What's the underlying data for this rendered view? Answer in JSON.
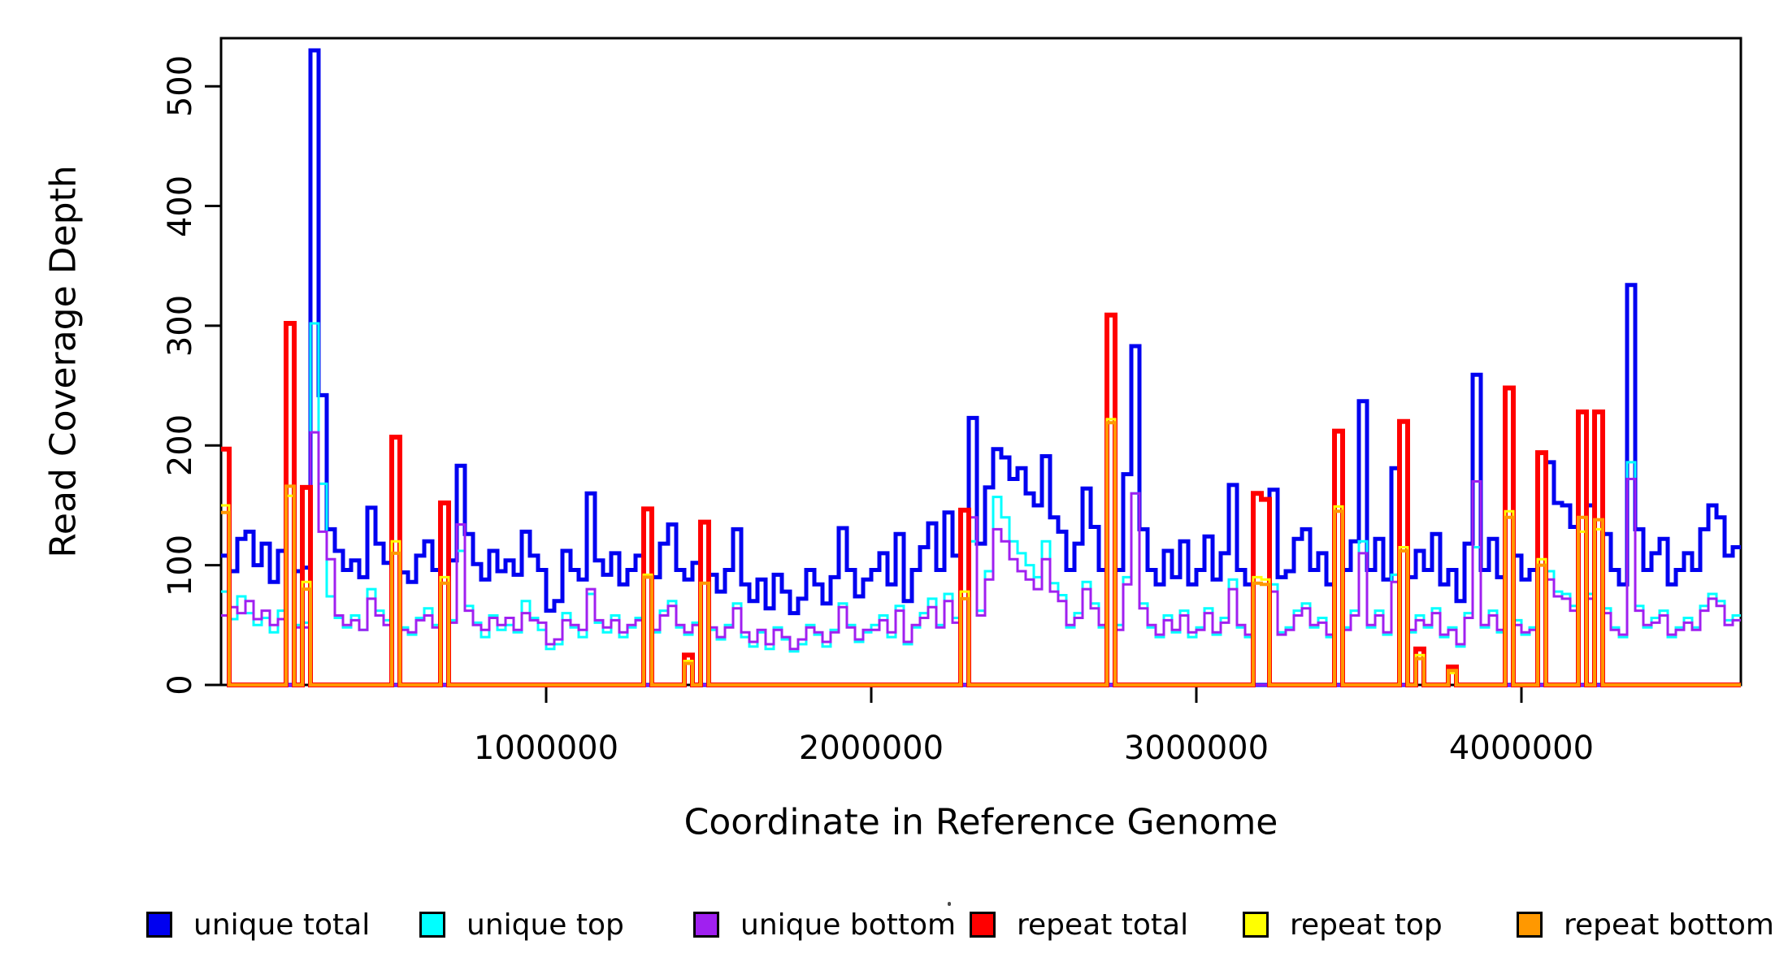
{
  "chart_data": {
    "type": "line",
    "subtype": "step-coverage-histogram-outline",
    "title": "",
    "xlabel": "Coordinate in Reference Genome",
    "ylabel": "Read Coverage Depth",
    "xlim": [
      0,
      4675000
    ],
    "ylim": [
      0,
      540
    ],
    "grid": false,
    "legend_position": "bottom",
    "x_bin_size": 25000,
    "x_start": 0,
    "x_tick_values": [
      1000000,
      2000000,
      3000000,
      4000000
    ],
    "x_tick_labels": [
      "1000000",
      "2000000",
      "3000000",
      "4000000"
    ],
    "y_tick_values": [
      0,
      100,
      200,
      300,
      400,
      500
    ],
    "y_tick_labels": [
      "0",
      "100",
      "200",
      "300",
      "400",
      "500"
    ],
    "series": [
      {
        "name": "unique total",
        "color": "#0000f0",
        "line_width": 5,
        "values": [
          108,
          95,
          122,
          128,
          100,
          118,
          86,
          112,
          0,
          95,
          98,
          530,
          242,
          130,
          112,
          96,
          104,
          90,
          148,
          118,
          102,
          0,
          94,
          86,
          108,
          120,
          96,
          0,
          104,
          183,
          126,
          101,
          88,
          112,
          95,
          104,
          92,
          128,
          108,
          96,
          62,
          70,
          112,
          96,
          88,
          160,
          104,
          92,
          110,
          84,
          96,
          108,
          0,
          90,
          118,
          134,
          96,
          88,
          102,
          0,
          92,
          78,
          96,
          130,
          84,
          70,
          88,
          64,
          92,
          78,
          60,
          72,
          96,
          84,
          68,
          90,
          131,
          96,
          74,
          88,
          96,
          110,
          84,
          126,
          70,
          96,
          115,
          135,
          96,
          144,
          108,
          0,
          223,
          118,
          165,
          197,
          190,
          172,
          181,
          160,
          150,
          191,
          140,
          128,
          96,
          118,
          164,
          132,
          96,
          0,
          96,
          176,
          283,
          130,
          96,
          84,
          112,
          90,
          120,
          84,
          96,
          124,
          88,
          110,
          167,
          96,
          84,
          0,
          0,
          163,
          90,
          95,
          122,
          130,
          96,
          110,
          84,
          0,
          96,
          120,
          237,
          96,
          122,
          88,
          181,
          0,
          90,
          112,
          96,
          126,
          84,
          96,
          70,
          118,
          259,
          96,
          122,
          90,
          0,
          108,
          88,
          96,
          0,
          186,
          152,
          150,
          132,
          0,
          150,
          0,
          126,
          96,
          84,
          334,
          130,
          96,
          110,
          122,
          84,
          96,
          110,
          96,
          130,
          150,
          140,
          108,
          115
        ]
      },
      {
        "name": "unique top",
        "color": "#00ffff",
        "line_width": 3,
        "values": [
          78,
          55,
          74,
          60,
          50,
          56,
          44,
          62,
          0,
          50,
          52,
          302,
          168,
          74,
          56,
          48,
          58,
          46,
          80,
          62,
          54,
          0,
          48,
          42,
          56,
          64,
          50,
          0,
          54,
          112,
          66,
          52,
          40,
          58,
          46,
          50,
          44,
          70,
          56,
          46,
          30,
          34,
          60,
          48,
          40,
          76,
          52,
          44,
          58,
          40,
          48,
          56,
          0,
          44,
          62,
          70,
          48,
          42,
          52,
          0,
          46,
          38,
          50,
          68,
          40,
          32,
          44,
          30,
          48,
          38,
          28,
          34,
          50,
          42,
          32,
          46,
          68,
          50,
          36,
          44,
          50,
          58,
          40,
          66,
          34,
          48,
          60,
          72,
          50,
          76,
          56,
          0,
          120,
          62,
          95,
          157,
          140,
          120,
          110,
          100,
          90,
          120,
          85,
          75,
          48,
          60,
          86,
          68,
          48,
          0,
          50,
          90,
          160,
          68,
          48,
          40,
          58,
          44,
          62,
          40,
          48,
          64,
          42,
          56,
          88,
          48,
          40,
          0,
          0,
          84,
          44,
          48,
          62,
          68,
          48,
          56,
          40,
          0,
          48,
          62,
          120,
          48,
          62,
          42,
          92,
          0,
          44,
          58,
          48,
          64,
          40,
          48,
          32,
          60,
          115,
          48,
          62,
          44,
          0,
          54,
          42,
          48,
          0,
          95,
          78,
          76,
          66,
          0,
          76,
          0,
          64,
          48,
          40,
          186,
          66,
          48,
          56,
          62,
          40,
          48,
          56,
          48,
          66,
          76,
          70,
          54,
          58
        ]
      },
      {
        "name": "unique bottom",
        "color": "#a020f0",
        "line_width": 3,
        "values": [
          58,
          65,
          60,
          70,
          55,
          62,
          50,
          55,
          0,
          48,
          48,
          211,
          128,
          105,
          58,
          50,
          54,
          46,
          72,
          58,
          50,
          0,
          46,
          44,
          54,
          58,
          48,
          0,
          52,
          134,
          62,
          50,
          46,
          56,
          50,
          56,
          46,
          60,
          54,
          52,
          34,
          38,
          54,
          50,
          46,
          80,
          54,
          48,
          54,
          44,
          50,
          54,
          0,
          46,
          58,
          66,
          50,
          44,
          50,
          0,
          48,
          40,
          48,
          64,
          44,
          36,
          46,
          34,
          46,
          40,
          30,
          38,
          48,
          44,
          36,
          44,
          65,
          48,
          38,
          46,
          46,
          54,
          44,
          62,
          36,
          50,
          56,
          65,
          48,
          70,
          52,
          0,
          140,
          58,
          88,
          130,
          120,
          105,
          95,
          88,
          80,
          105,
          78,
          70,
          50,
          56,
          80,
          64,
          50,
          0,
          46,
          84,
          160,
          64,
          50,
          42,
          54,
          46,
          58,
          44,
          46,
          60,
          44,
          52,
          80,
          50,
          42,
          0,
          0,
          78,
          42,
          46,
          58,
          64,
          50,
          52,
          42,
          0,
          46,
          58,
          110,
          50,
          58,
          44,
          86,
          0,
          46,
          54,
          50,
          60,
          42,
          46,
          34,
          56,
          170,
          50,
          58,
          46,
          0,
          50,
          44,
          46,
          0,
          88,
          74,
          72,
          62,
          0,
          72,
          0,
          60,
          46,
          42,
          172,
          62,
          50,
          52,
          58,
          42,
          46,
          52,
          46,
          62,
          72,
          66,
          50,
          54
        ]
      },
      {
        "name": "repeat total",
        "color": "#ff0000",
        "line_width": 6,
        "values": [
          197,
          0,
          0,
          0,
          0,
          0,
          0,
          0,
          302,
          0,
          165,
          0,
          0,
          0,
          0,
          0,
          0,
          0,
          0,
          0,
          0,
          207,
          0,
          0,
          0,
          0,
          0,
          152,
          0,
          0,
          0,
          0,
          0,
          0,
          0,
          0,
          0,
          0,
          0,
          0,
          0,
          0,
          0,
          0,
          0,
          0,
          0,
          0,
          0,
          0,
          0,
          0,
          147,
          0,
          0,
          0,
          0,
          25,
          0,
          136,
          0,
          0,
          0,
          0,
          0,
          0,
          0,
          0,
          0,
          0,
          0,
          0,
          0,
          0,
          0,
          0,
          0,
          0,
          0,
          0,
          0,
          0,
          0,
          0,
          0,
          0,
          0,
          0,
          0,
          0,
          0,
          146,
          0,
          0,
          0,
          0,
          0,
          0,
          0,
          0,
          0,
          0,
          0,
          0,
          0,
          0,
          0,
          0,
          0,
          309,
          0,
          0,
          0,
          0,
          0,
          0,
          0,
          0,
          0,
          0,
          0,
          0,
          0,
          0,
          0,
          0,
          0,
          160,
          155,
          0,
          0,
          0,
          0,
          0,
          0,
          0,
          0,
          212,
          0,
          0,
          0,
          0,
          0,
          0,
          0,
          220,
          0,
          30,
          0,
          0,
          0,
          15,
          0,
          0,
          0,
          0,
          0,
          0,
          248,
          0,
          0,
          0,
          194,
          0,
          0,
          0,
          0,
          228,
          0,
          228,
          0,
          0,
          0,
          0,
          0,
          0,
          0,
          0,
          0,
          0,
          0,
          0,
          0,
          0,
          0,
          0,
          0
        ]
      },
      {
        "name": "repeat top",
        "color": "#ffff00",
        "line_width": 3,
        "values": [
          150,
          0,
          0,
          0,
          0,
          0,
          0,
          0,
          158,
          0,
          86,
          0,
          0,
          0,
          0,
          0,
          0,
          0,
          0,
          0,
          0,
          120,
          0,
          0,
          0,
          0,
          0,
          90,
          0,
          0,
          0,
          0,
          0,
          0,
          0,
          0,
          0,
          0,
          0,
          0,
          0,
          0,
          0,
          0,
          0,
          0,
          0,
          0,
          0,
          0,
          0,
          0,
          92,
          0,
          0,
          0,
          0,
          20,
          0,
          85,
          0,
          0,
          0,
          0,
          0,
          0,
          0,
          0,
          0,
          0,
          0,
          0,
          0,
          0,
          0,
          0,
          0,
          0,
          0,
          0,
          0,
          0,
          0,
          0,
          0,
          0,
          0,
          0,
          0,
          0,
          0,
          78,
          0,
          0,
          0,
          0,
          0,
          0,
          0,
          0,
          0,
          0,
          0,
          0,
          0,
          0,
          0,
          0,
          0,
          222,
          0,
          0,
          0,
          0,
          0,
          0,
          0,
          0,
          0,
          0,
          0,
          0,
          0,
          0,
          0,
          0,
          0,
          90,
          88,
          0,
          0,
          0,
          0,
          0,
          0,
          0,
          0,
          149,
          0,
          0,
          0,
          0,
          0,
          0,
          0,
          115,
          0,
          25,
          0,
          0,
          0,
          10,
          0,
          0,
          0,
          0,
          0,
          0,
          145,
          0,
          0,
          0,
          105,
          0,
          0,
          0,
          0,
          128,
          0,
          130,
          0,
          0,
          0,
          0,
          0,
          0,
          0,
          0,
          0,
          0,
          0,
          0,
          0,
          0,
          0,
          0,
          0
        ]
      },
      {
        "name": "repeat bottom",
        "color": "#ff9800",
        "line_width": 4,
        "values": [
          144,
          0,
          0,
          0,
          0,
          0,
          0,
          0,
          166,
          0,
          80,
          0,
          0,
          0,
          0,
          0,
          0,
          0,
          0,
          0,
          0,
          110,
          0,
          0,
          0,
          0,
          0,
          85,
          0,
          0,
          0,
          0,
          0,
          0,
          0,
          0,
          0,
          0,
          0,
          0,
          0,
          0,
          0,
          0,
          0,
          0,
          0,
          0,
          0,
          0,
          0,
          0,
          90,
          0,
          0,
          0,
          0,
          18,
          0,
          85,
          0,
          0,
          0,
          0,
          0,
          0,
          0,
          0,
          0,
          0,
          0,
          0,
          0,
          0,
          0,
          0,
          0,
          0,
          0,
          0,
          0,
          0,
          0,
          0,
          0,
          0,
          0,
          0,
          0,
          0,
          0,
          72,
          0,
          0,
          0,
          0,
          0,
          0,
          0,
          0,
          0,
          0,
          0,
          0,
          0,
          0,
          0,
          0,
          0,
          219,
          0,
          0,
          0,
          0,
          0,
          0,
          0,
          0,
          0,
          0,
          0,
          0,
          0,
          0,
          0,
          0,
          0,
          85,
          84,
          0,
          0,
          0,
          0,
          0,
          0,
          0,
          0,
          145,
          0,
          0,
          0,
          0,
          0,
          0,
          0,
          112,
          0,
          22,
          0,
          0,
          0,
          12,
          0,
          0,
          0,
          0,
          0,
          0,
          140,
          0,
          0,
          0,
          100,
          0,
          0,
          0,
          0,
          140,
          0,
          138,
          0,
          0,
          0,
          0,
          0,
          0,
          0,
          0,
          0,
          0,
          0,
          0,
          0,
          0,
          0,
          0,
          0
        ]
      }
    ]
  },
  "legend": {
    "items": [
      {
        "label": "unique total",
        "color": "#0000f0"
      },
      {
        "label": "unique top",
        "color": "#00ffff"
      },
      {
        "label": "unique bottom",
        "color": "#a020f0"
      },
      {
        "label": "repeat total",
        "color": "#ff0000"
      },
      {
        "label": "repeat top",
        "color": "#ffff00"
      },
      {
        "label": "repeat bottom",
        "color": "#ff9800"
      }
    ]
  },
  "axis_color": "#000000"
}
